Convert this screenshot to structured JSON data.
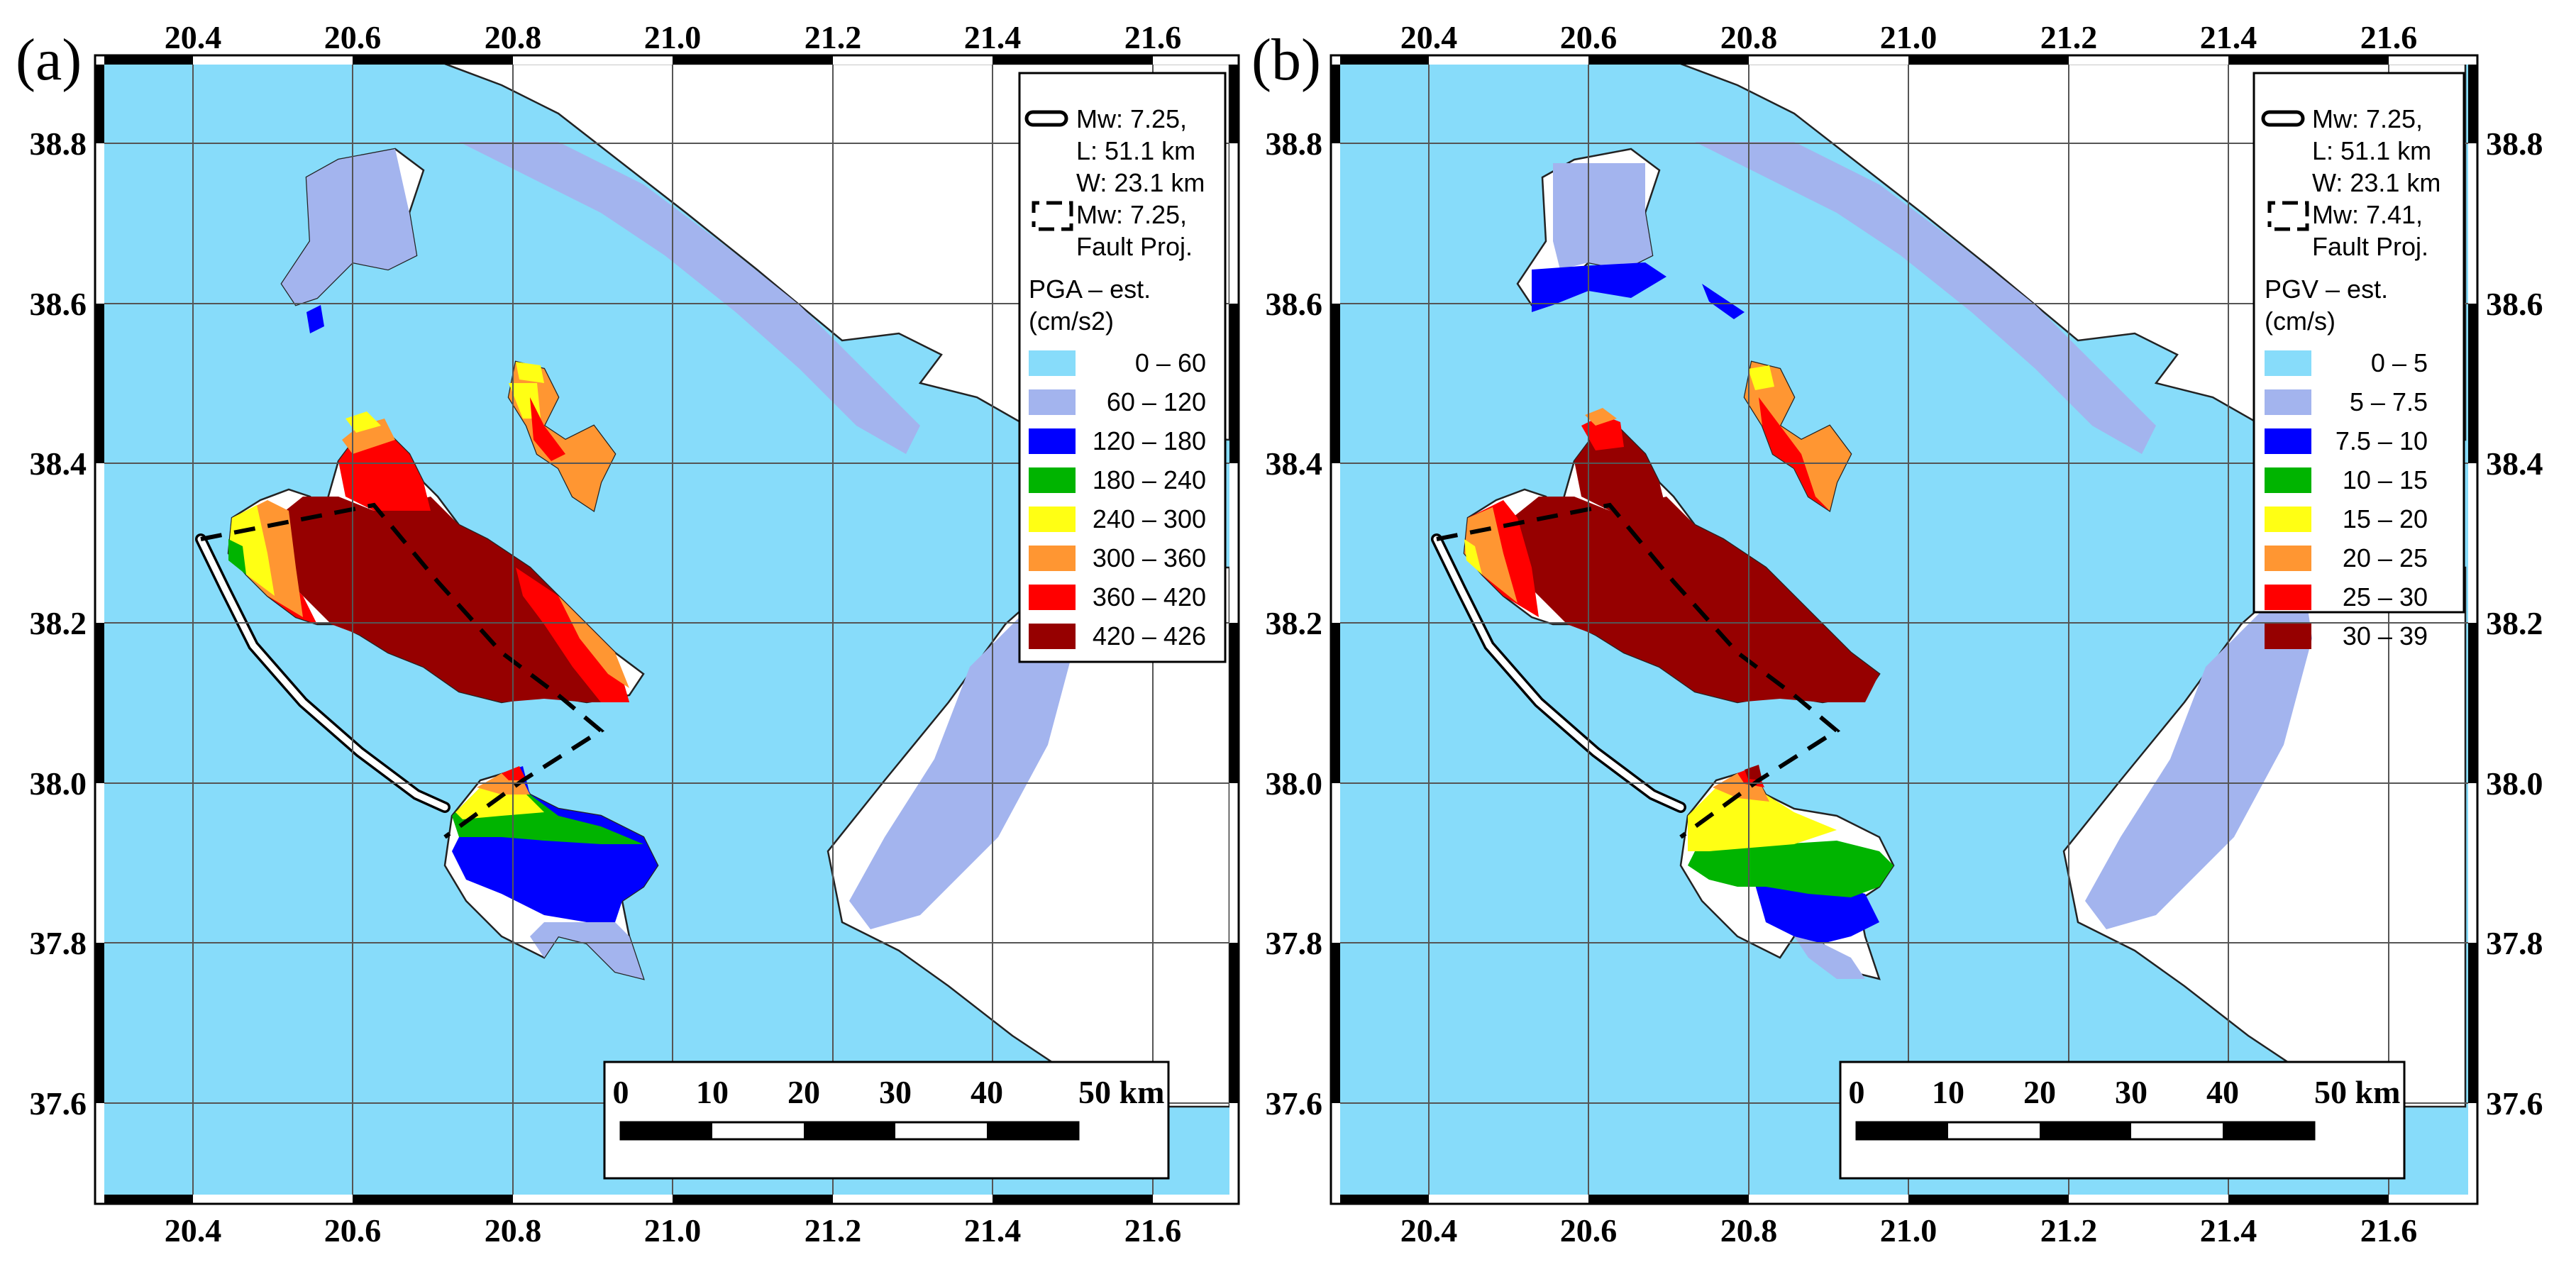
{
  "colors": {
    "sea": "#87dcfa",
    "land": "#ffffff",
    "grid": "#555555",
    "class_colors": [
      "#87dcfa",
      "#a3b4ee",
      "#0000ff",
      "#00b400",
      "#ffff14",
      "#ff9632",
      "#ff0000",
      "#960000"
    ]
  },
  "panels": [
    {
      "label": "(a)",
      "x_ticks": [
        "20.4",
        "20.6",
        "20.8",
        "21.0",
        "21.2",
        "21.4",
        "21.6"
      ],
      "y_ticks": [
        "38.8",
        "38.6",
        "38.4",
        "38.2",
        "38.0",
        "37.8",
        "37.6"
      ],
      "legend": {
        "rupture_lines": [
          "Mw: 7.25,",
          "L: 51.1 km",
          "W: 23.1 km"
        ],
        "projection_lines": [
          "Mw: 7.25,",
          "Fault Proj."
        ],
        "title_lines": [
          "PGA – est.",
          "(cm/s2)"
        ],
        "classes": [
          "0 – 60",
          "60 – 120",
          "120 – 180",
          "180 – 240",
          "240 – 300",
          "300 – 360",
          "360 – 420",
          "420 – 426"
        ]
      },
      "scale_labels": [
        "0",
        "10",
        "20",
        "30",
        "40",
        "50 km"
      ]
    },
    {
      "label": "(b)",
      "x_ticks": [
        "20.4",
        "20.6",
        "20.8",
        "21.0",
        "21.2",
        "21.4",
        "21.6"
      ],
      "y_ticks": [
        "38.8",
        "38.6",
        "38.4",
        "38.2",
        "38.0",
        "37.8",
        "37.6"
      ],
      "legend": {
        "rupture_lines": [
          "Mw: 7.25,",
          "L: 51.1 km",
          "W: 23.1 km"
        ],
        "projection_lines": [
          "Mw: 7.41,",
          "Fault Proj."
        ],
        "title_lines": [
          "PGV – est.",
          "(cm/s)"
        ],
        "classes": [
          "0 – 5",
          "5 – 7.5",
          "7.5 – 10",
          "10 – 15",
          "15 – 20",
          "20 – 25",
          "25 – 30",
          "30 – 39"
        ]
      },
      "scale_labels": [
        "0",
        "10",
        "20",
        "30",
        "40",
        "50 km"
      ]
    }
  ]
}
